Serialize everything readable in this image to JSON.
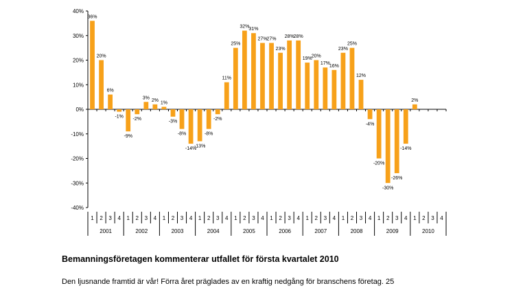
{
  "chart_data": {
    "type": "bar",
    "title": "",
    "xlabel": "",
    "ylabel": "",
    "ylim": [
      -40,
      40
    ],
    "yticks": [
      40,
      30,
      20,
      10,
      0,
      -10,
      -20,
      -30,
      -40
    ],
    "ytick_labels": [
      "40%",
      "30%",
      "20%",
      "10%",
      "0%",
      "-10%",
      "-20%",
      "-30%",
      "-40%"
    ],
    "bar_color": "#F7A11A",
    "years": [
      "2001",
      "2002",
      "2003",
      "2004",
      "2005",
      "2006",
      "2007",
      "2008",
      "2009",
      "2010"
    ],
    "quarters": [
      "1",
      "2",
      "3",
      "4"
    ],
    "values": [
      36,
      20,
      6,
      -1,
      -9,
      -2,
      3,
      2,
      1,
      -3,
      -8,
      -14,
      -13,
      -8,
      -2,
      11,
      25,
      32,
      31,
      27,
      27,
      23,
      28,
      28,
      19,
      20,
      17,
      16,
      23,
      25,
      12,
      -4,
      -20,
      -30,
      -26,
      -14,
      2,
      null,
      null,
      null
    ],
    "data_labels": [
      "36%",
      "20%",
      "6%",
      "-1%",
      "-9%",
      "-2%",
      "3%",
      "2%",
      "1%",
      "-3%",
      "-8%",
      "-14%",
      "-13%",
      "-8%",
      "-2%",
      "11%",
      "25%",
      "32%",
      "31%",
      "27%",
      "27%",
      "23%",
      "28%",
      "28%",
      "19%",
      "20%",
      "17%",
      "16%",
      "23%",
      "25%",
      "12%",
      "-4%",
      "-20%",
      "-30%",
      "-26%",
      "-14%",
      "2%",
      "",
      "",
      ""
    ]
  },
  "article": {
    "heading": "Bemanningsföretagen kommenterar utfallet för första kvartalet 2010",
    "paragraph": "Den ljusnande framtid är vår! Förra året präglades av en kraftig nedgång för branschens företag. 25"
  }
}
